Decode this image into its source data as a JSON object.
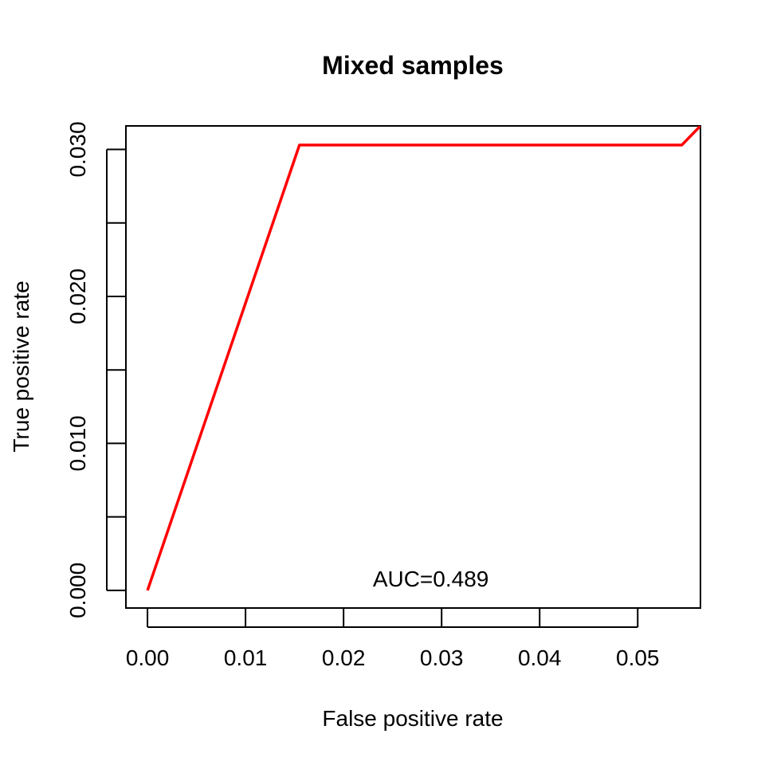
{
  "chart_data": {
    "type": "line",
    "title": "Mixed samples",
    "xlabel": "False positive rate",
    "ylabel": "True positive rate",
    "xlim": [
      -0.0022,
      0.0564
    ],
    "ylim": [
      -0.0012,
      0.0316
    ],
    "x_ticks": [
      0.0,
      0.01,
      0.02,
      0.03,
      0.04,
      0.05
    ],
    "x_tick_labels": [
      "0.00",
      "0.01",
      "0.02",
      "0.03",
      "0.04",
      "0.05"
    ],
    "y_ticks": [
      0.0,
      0.005,
      0.01,
      0.015,
      0.02,
      0.025,
      0.03
    ],
    "y_tick_labels": [
      "0.000",
      "",
      "0.010",
      "",
      "0.020",
      "",
      "0.030"
    ],
    "grid": false,
    "series": [
      {
        "color": "#ff0000",
        "x": [
          0.0,
          0.0155,
          0.0545,
          0.0564
        ],
        "y": [
          0.0,
          0.0303,
          0.0303,
          0.0316
        ]
      }
    ],
    "annotation": {
      "text": "AUC=0.489",
      "x": 0.0289,
      "y": 0.0008
    }
  }
}
